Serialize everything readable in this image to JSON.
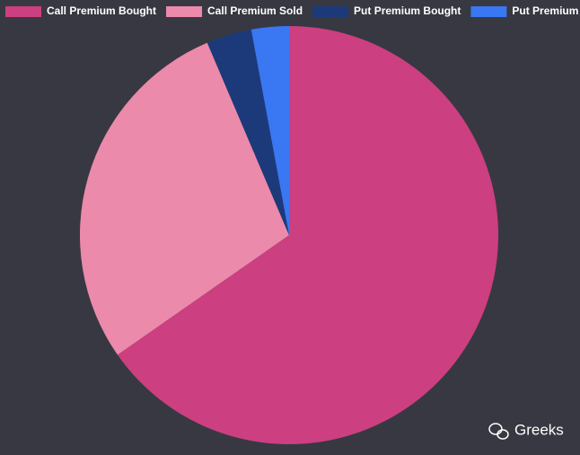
{
  "chart_data": {
    "type": "pie",
    "series": [
      {
        "name": "Call Premium Bought",
        "color": "#cc3f80",
        "values": [
          65.3
        ]
      },
      {
        "name": "Call Premium Sold",
        "color": "#eb8aab",
        "values": [
          28.3
        ]
      },
      {
        "name": "Put Premium Bought",
        "color": "#1c3a7a",
        "values": [
          3.5
        ]
      },
      {
        "name": "Put Premium Sold",
        "color": "#3a77f2",
        "values": [
          2.9
        ]
      }
    ],
    "watermark": "Greeks"
  }
}
